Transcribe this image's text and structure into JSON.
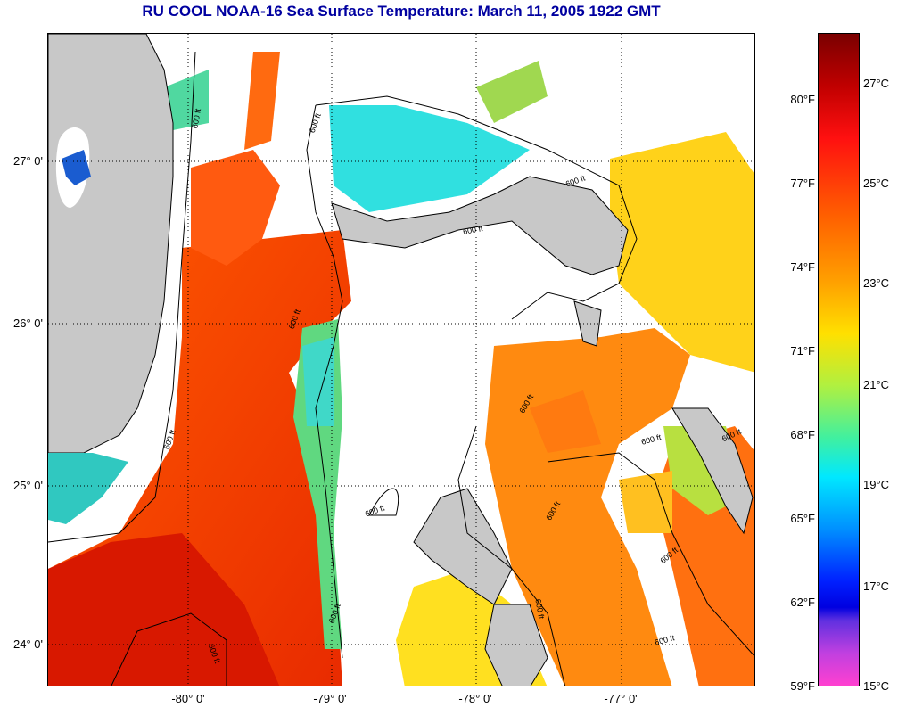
{
  "title": "RU COOL  NOAA-16  Sea Surface Temperature:  March 11, 2005 1922 GMT",
  "map": {
    "lat_ticks": [
      "27° 0'",
      "26° 0'",
      "25° 0'",
      "24° 0'"
    ],
    "lon_ticks": [
      "-80° 0'",
      "-79° 0'",
      "-78° 0'",
      "-77° 0'"
    ],
    "isobath_label": "600 ft",
    "colors": {
      "land": "#c8c8c8",
      "cloud": "#ffffff",
      "warm": "#ff3a00",
      "hot": "#d01000",
      "orange": "#ff8c00",
      "yellow": "#ffd800",
      "green": "#9cdc40",
      "cyan": "#20e8e8",
      "blue": "#1060e0",
      "magenta": "#ff40c0"
    }
  },
  "colorbar": {
    "fahrenheit_labels": [
      "80°F",
      "77°F",
      "74°F",
      "71°F",
      "68°F",
      "65°F",
      "62°F",
      "59°F"
    ],
    "celsius_labels": [
      "27°C",
      "25°C",
      "23°C",
      "21°C",
      "19°C",
      "17°C",
      "15°C"
    ]
  }
}
